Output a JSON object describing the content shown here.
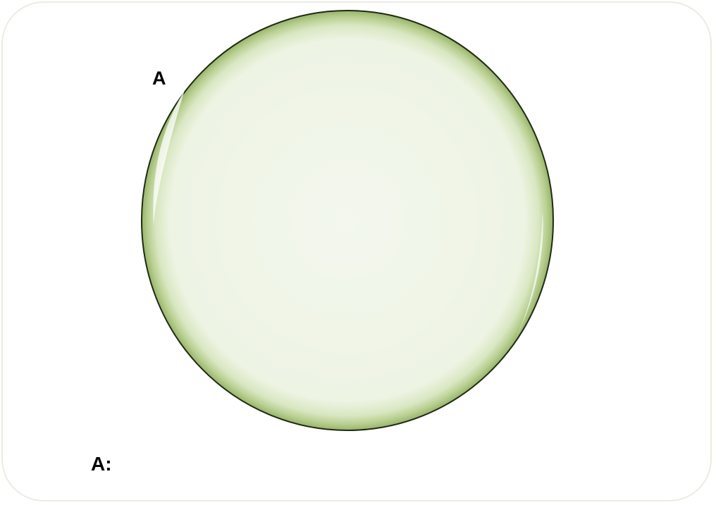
{
  "diagram": {
    "set_label": "A",
    "answer_label": "A:",
    "colors": {
      "circle_fill": "#f2f6ec",
      "circle_edge": "#b6cc8c",
      "circle_outline": "#1f2a12",
      "frame_border": "#ecece4"
    }
  }
}
